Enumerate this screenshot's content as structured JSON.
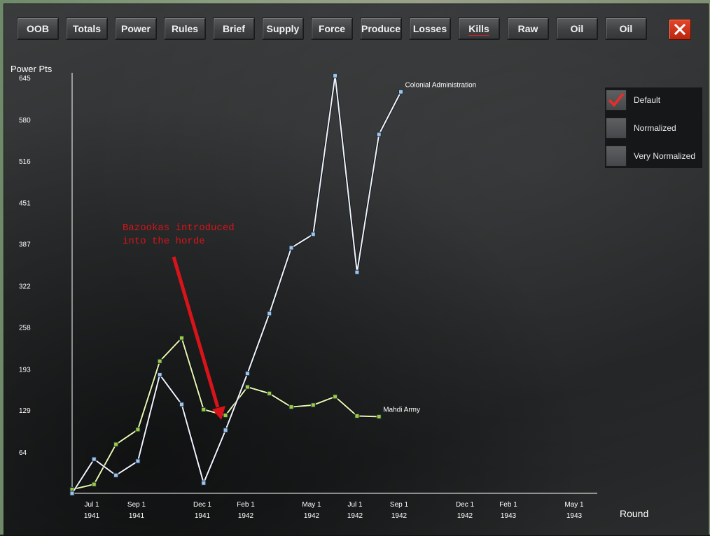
{
  "toolbar": {
    "tabs": [
      {
        "label": "OOB"
      },
      {
        "label": "Totals"
      },
      {
        "label": "Power"
      },
      {
        "label": "Rules"
      },
      {
        "label": "Brief"
      },
      {
        "label": "Supply"
      },
      {
        "label": "Force"
      },
      {
        "label": "Produce"
      },
      {
        "label": "Losses"
      },
      {
        "label": "Kills"
      },
      {
        "label": "Raw"
      },
      {
        "label": "Oil"
      },
      {
        "label": "Oil"
      }
    ],
    "active_tab": "Kills"
  },
  "options": {
    "items": [
      {
        "label": "Default",
        "checked": true
      },
      {
        "label": "Normalized",
        "checked": false
      },
      {
        "label": "Very Normalized",
        "checked": false
      }
    ]
  },
  "annotation": {
    "line1": "Bazookas introduced",
    "line2": "into the horde",
    "color": "#d8141a"
  },
  "chart_data": {
    "type": "line",
    "ylabel": "Power Pts",
    "xlabel": "Round",
    "yticks": [
      "645",
      "580",
      "516",
      "451",
      "387",
      "322",
      "258",
      "193",
      "129",
      "64"
    ],
    "ylim": [
      0,
      645
    ],
    "x_tick_labels": [
      {
        "month": "Jul 1",
        "year": "1941"
      },
      {
        "month": "Sep 1",
        "year": "1941"
      },
      {
        "month": "Dec 1",
        "year": "1941"
      },
      {
        "month": "Feb 1",
        "year": "1942"
      },
      {
        "month": "May 1",
        "year": "1942"
      },
      {
        "month": "Jul 1",
        "year": "1942"
      },
      {
        "month": "Sep 1",
        "year": "1942"
      },
      {
        "month": "Dec 1",
        "year": "1942"
      },
      {
        "month": "Feb 1",
        "year": "1943"
      },
      {
        "month": "May 1",
        "year": "1943"
      }
    ],
    "rounds": 19,
    "series": [
      {
        "name": "Colonial Administration",
        "color": "#eef4ff",
        "marker": "#9fc4ea",
        "values": [
          0,
          53,
          28,
          50,
          184,
          138,
          16,
          98,
          186,
          279,
          381,
          402,
          648,
          343,
          557,
          623
        ]
      },
      {
        "name": "Mahdi Army",
        "color": "#e6f5b4",
        "marker": "#9ccc3c",
        "values": [
          6,
          14,
          76,
          99,
          205,
          241,
          130,
          121,
          165,
          155,
          134,
          137,
          150,
          120,
          119
        ]
      }
    ],
    "grid": false,
    "legend": "inline labels at series ends"
  }
}
